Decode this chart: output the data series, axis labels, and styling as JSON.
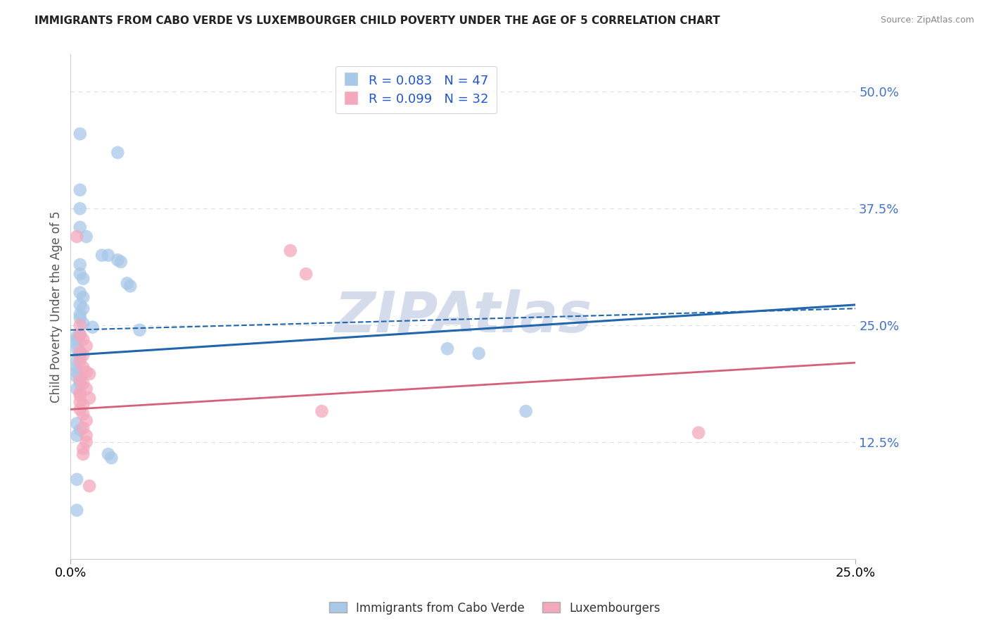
{
  "title": "IMMIGRANTS FROM CABO VERDE VS LUXEMBOURGER CHILD POVERTY UNDER THE AGE OF 5 CORRELATION CHART",
  "source": "Source: ZipAtlas.com",
  "ylabel": "Child Poverty Under the Age of 5",
  "ytick_values": [
    0.125,
    0.25,
    0.375,
    0.5
  ],
  "xmin": 0.0,
  "xmax": 0.25,
  "ymin": 0.0,
  "ymax": 0.54,
  "legend1_label": "R = 0.083   N = 47",
  "legend2_label": "R = 0.099   N = 32",
  "legend_x_label": "Immigrants from Cabo Verde",
  "legend_y_label": "Luxembourgers",
  "blue_color": "#a8c8e8",
  "pink_color": "#f4a8bc",
  "blue_line_color": "#2166ac",
  "pink_line_color": "#d4607a",
  "blue_scatter": [
    [
      0.003,
      0.455
    ],
    [
      0.015,
      0.435
    ],
    [
      0.003,
      0.395
    ],
    [
      0.003,
      0.375
    ],
    [
      0.003,
      0.355
    ],
    [
      0.005,
      0.345
    ],
    [
      0.01,
      0.325
    ],
    [
      0.012,
      0.325
    ],
    [
      0.015,
      0.32
    ],
    [
      0.016,
      0.318
    ],
    [
      0.003,
      0.315
    ],
    [
      0.003,
      0.305
    ],
    [
      0.004,
      0.3
    ],
    [
      0.018,
      0.295
    ],
    [
      0.019,
      0.292
    ],
    [
      0.003,
      0.285
    ],
    [
      0.004,
      0.28
    ],
    [
      0.003,
      0.272
    ],
    [
      0.004,
      0.268
    ],
    [
      0.003,
      0.262
    ],
    [
      0.003,
      0.258
    ],
    [
      0.004,
      0.252
    ],
    [
      0.007,
      0.248
    ],
    [
      0.022,
      0.245
    ],
    [
      0.003,
      0.24
    ],
    [
      0.002,
      0.238
    ],
    [
      0.002,
      0.235
    ],
    [
      0.002,
      0.23
    ],
    [
      0.002,
      0.225
    ],
    [
      0.003,
      0.22
    ],
    [
      0.003,
      0.218
    ],
    [
      0.002,
      0.212
    ],
    [
      0.12,
      0.225
    ],
    [
      0.002,
      0.205
    ],
    [
      0.002,
      0.2
    ],
    [
      0.13,
      0.22
    ],
    [
      0.002,
      0.195
    ],
    [
      0.003,
      0.188
    ],
    [
      0.002,
      0.182
    ],
    [
      0.145,
      0.158
    ],
    [
      0.002,
      0.145
    ],
    [
      0.003,
      0.138
    ],
    [
      0.002,
      0.132
    ],
    [
      0.012,
      0.112
    ],
    [
      0.013,
      0.108
    ],
    [
      0.002,
      0.085
    ],
    [
      0.002,
      0.052
    ]
  ],
  "pink_scatter": [
    [
      0.002,
      0.345
    ],
    [
      0.07,
      0.33
    ],
    [
      0.075,
      0.305
    ],
    [
      0.003,
      0.25
    ],
    [
      0.003,
      0.24
    ],
    [
      0.004,
      0.235
    ],
    [
      0.005,
      0.228
    ],
    [
      0.003,
      0.222
    ],
    [
      0.004,
      0.218
    ],
    [
      0.003,
      0.212
    ],
    [
      0.004,
      0.205
    ],
    [
      0.005,
      0.2
    ],
    [
      0.006,
      0.198
    ],
    [
      0.003,
      0.192
    ],
    [
      0.004,
      0.188
    ],
    [
      0.005,
      0.182
    ],
    [
      0.003,
      0.178
    ],
    [
      0.003,
      0.175
    ],
    [
      0.006,
      0.172
    ],
    [
      0.003,
      0.168
    ],
    [
      0.004,
      0.165
    ],
    [
      0.003,
      0.16
    ],
    [
      0.004,
      0.155
    ],
    [
      0.08,
      0.158
    ],
    [
      0.005,
      0.148
    ],
    [
      0.004,
      0.14
    ],
    [
      0.005,
      0.132
    ],
    [
      0.005,
      0.125
    ],
    [
      0.004,
      0.118
    ],
    [
      0.004,
      0.112
    ],
    [
      0.2,
      0.135
    ],
    [
      0.006,
      0.078
    ]
  ],
  "blue_line": {
    "x0": 0.0,
    "y0": 0.218,
    "x1": 0.25,
    "y1": 0.272
  },
  "blue_dash_line": {
    "x0": 0.0,
    "y0": 0.245,
    "x1": 0.25,
    "y1": 0.268
  },
  "pink_line": {
    "x0": 0.0,
    "y0": 0.16,
    "x1": 0.25,
    "y1": 0.21
  },
  "watermark": "ZIPAtlas",
  "watermark_color": "#d0d8e8",
  "bg_color": "#ffffff",
  "grid_color": "#dddddd"
}
